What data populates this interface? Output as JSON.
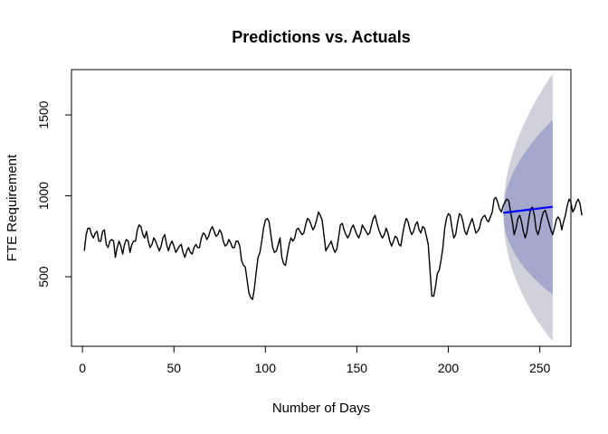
{
  "chart_data": {
    "type": "line",
    "title": "Predictions vs. Actuals",
    "xlabel": "Number of Days",
    "ylabel": "FTE Requirement",
    "xlim": [
      -6,
      267
    ],
    "ylim": [
      70,
      1780
    ],
    "xticks": [
      0,
      50,
      100,
      150,
      200,
      250
    ],
    "yticks": [
      500,
      1000,
      1500
    ],
    "grid": false,
    "colors": {
      "actual": "#000000",
      "forecast": "#0000ff",
      "band_95": "#d1d1db",
      "band_80": "#a3a8cc"
    },
    "series": [
      {
        "key": "actual",
        "x_start": 1,
        "values": [
          660,
          760,
          800,
          800,
          760,
          740,
          770,
          780,
          720,
          720,
          780,
          790,
          700,
          680,
          720,
          730,
          720,
          620,
          680,
          720,
          690,
          640,
          700,
          730,
          720,
          650,
          700,
          720,
          720,
          790,
          820,
          810,
          760,
          740,
          780,
          720,
          680,
          700,
          740,
          720,
          690,
          660,
          690,
          740,
          760,
          700,
          660,
          700,
          720,
          690,
          650,
          670,
          690,
          700,
          650,
          620,
          660,
          680,
          650,
          640,
          680,
          700,
          680,
          680,
          740,
          770,
          760,
          730,
          750,
          790,
          810,
          780,
          750,
          760,
          790,
          770,
          720,
          690,
          700,
          730,
          710,
          680,
          680,
          720,
          720,
          690,
          600,
          570,
          560,
          480,
          400,
          370,
          360,
          430,
          530,
          620,
          650,
          720,
          800,
          850,
          860,
          840,
          760,
          680,
          650,
          660,
          700,
          740,
          620,
          580,
          570,
          640,
          700,
          740,
          720,
          740,
          790,
          800,
          780,
          760,
          770,
          820,
          860,
          850,
          820,
          790,
          810,
          850,
          900,
          880,
          850,
          760,
          660,
          680,
          700,
          720,
          680,
          650,
          670,
          740,
          820,
          830,
          790,
          760,
          740,
          760,
          800,
          820,
          790,
          760,
          740,
          770,
          820,
          800,
          780,
          760,
          770,
          820,
          860,
          880,
          830,
          790,
          760,
          740,
          760,
          800,
          770,
          720,
          690,
          720,
          750,
          740,
          700,
          690,
          760,
          820,
          860,
          840,
          790,
          760,
          780,
          820,
          840,
          790,
          770,
          810,
          800,
          750,
          700,
          540,
          380,
          380,
          440,
          520,
          540,
          600,
          680,
          800,
          860,
          890,
          880,
          800,
          740,
          760,
          830,
          890,
          880,
          840,
          780,
          760,
          800,
          830,
          860,
          820,
          770,
          780,
          800,
          850,
          870,
          880,
          850,
          840,
          870,
          900,
          980,
          990,
          960,
          920,
          900,
          940,
          960,
          980,
          970,
          900,
          840,
          760,
          800,
          860,
          880,
          840,
          780,
          740,
          780,
          860,
          920,
          930,
          880,
          790,
          760,
          800,
          860,
          900,
          910,
          870,
          830,
          790,
          760,
          800,
          850,
          870,
          850,
          790,
          840,
          880,
          940,
          980,
          960,
          900,
          920,
          960,
          980,
          950,
          880
        ]
      },
      {
        "key": "forecast",
        "x_start": 230,
        "values": [
          895,
          932
        ]
      }
    ],
    "bands": [
      {
        "key": "band_95",
        "x": [
          230,
          257
        ],
        "lower_end": 100,
        "upper_end": 1755
      },
      {
        "key": "band_80",
        "x": [
          230,
          257
        ],
        "lower_end": 390,
        "upper_end": 1470
      }
    ]
  }
}
